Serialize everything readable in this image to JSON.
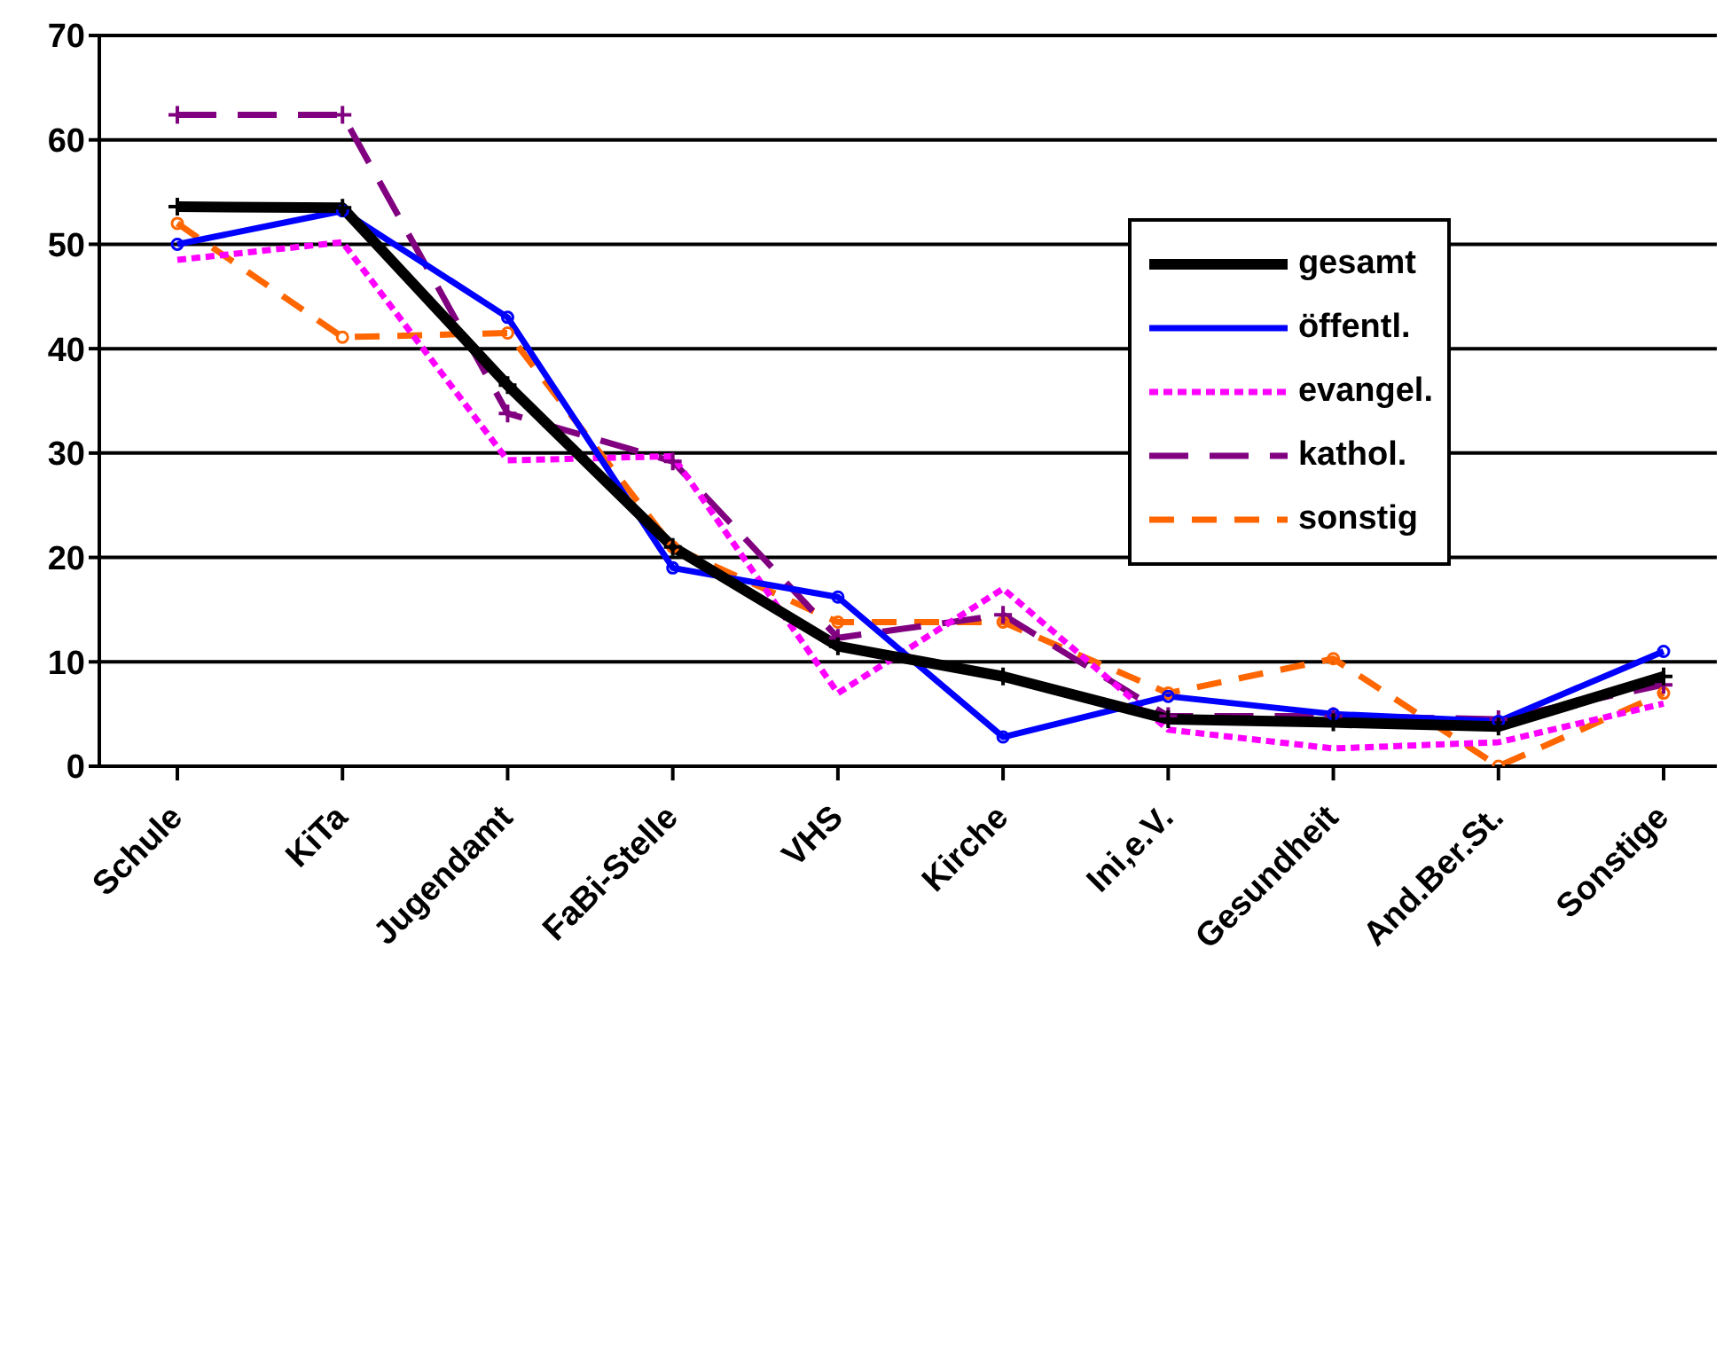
{
  "chart_data": {
    "type": "line",
    "categories": [
      "Schule",
      "KiTa",
      "Jugendamt",
      "FaBi-Stelle",
      "VHS",
      "Kirche",
      "Ini,e.V.",
      "Gesundheit",
      "And.Ber.St.",
      "Sonstige"
    ],
    "series": [
      {
        "name": "gesamt",
        "color": "#000000",
        "line_style": "solid",
        "marker": "cross",
        "values": [
          53.6,
          53.5,
          36.5,
          21,
          11.5,
          8.6,
          4.5,
          4.2,
          3.8,
          8.6
        ]
      },
      {
        "name": "öffentl.",
        "color": "#0000ff",
        "line_style": "solid",
        "marker": "circle",
        "values": [
          50,
          53.2,
          43,
          19,
          16.2,
          2.8,
          6.7,
          5,
          4.3,
          11
        ]
      },
      {
        "name": "evangel.",
        "color": "#ff00ff",
        "line_style": "dotted",
        "marker": "none",
        "values": [
          48.5,
          50.2,
          29.3,
          29.7,
          7,
          17,
          3.5,
          1.7,
          2.3,
          6
        ]
      },
      {
        "name": "kathol.",
        "color": "#800080",
        "line_style": "dashed",
        "marker": "cross",
        "values": [
          62.4,
          62.4,
          33.8,
          29.2,
          12.3,
          14.5,
          4.8,
          4.8,
          4.5,
          7.8
        ]
      },
      {
        "name": "sonstig",
        "color": "#ff6600",
        "line_style": "dashed",
        "marker": "circle",
        "values": [
          52,
          41.1,
          41.5,
          21,
          13.8,
          13.8,
          7,
          10.3,
          0,
          7
        ]
      }
    ],
    "ylim": [
      0,
      70
    ],
    "yticks": [
      0,
      10,
      20,
      30,
      40,
      50,
      60,
      70
    ],
    "grid": "y",
    "legend": "top right"
  }
}
